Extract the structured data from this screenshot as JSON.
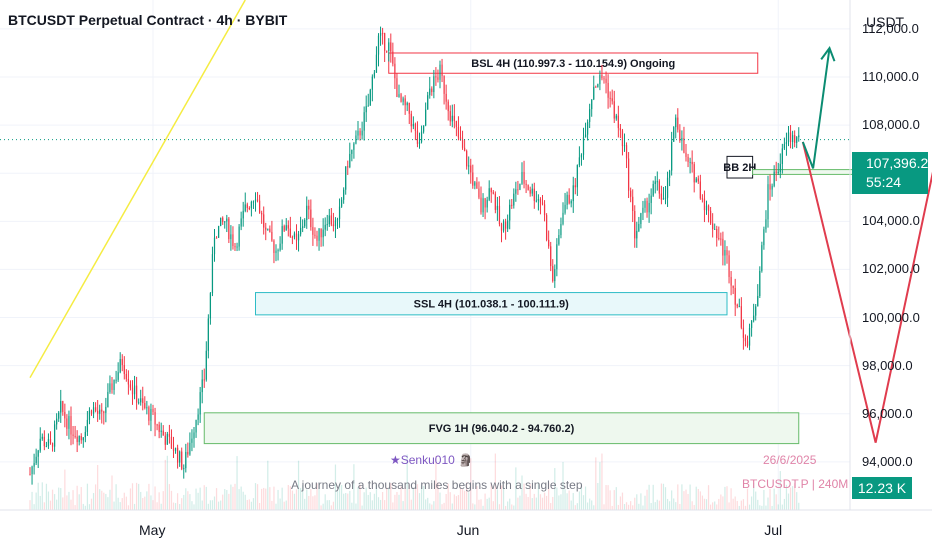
{
  "header": {
    "title": "BTCUSDT Perpetual Contract · 4h · BYBIT",
    "unit": "USDT"
  },
  "current": {
    "price": "107,396.2",
    "countdown": "55:24",
    "volume": "12.23 K",
    "value": 107396.2
  },
  "watermark": {
    "author": "★Senku010 🗿",
    "quote": "A journey of a thousand miles begins with a single step",
    "date": "26/6/2025",
    "symbol": "BTCUSDT.P | 240M"
  },
  "colors": {
    "up": "#089981",
    "down": "#f23645",
    "projection_down": "#e03c4e",
    "projection_up": "#0b8c72",
    "trendline": "#f5ec42"
  },
  "chart_data": {
    "type": "candlestick",
    "ylim": [
      92000,
      113200
    ],
    "y_ticks": [
      {
        "v": 112000,
        "label": "112,000.0"
      },
      {
        "v": 110000,
        "label": "110,000.0"
      },
      {
        "v": 108000,
        "label": "108,000.0"
      },
      {
        "v": 106000,
        "label": "106,000.0"
      },
      {
        "v": 104000,
        "label": "104,000.0"
      },
      {
        "v": 102000,
        "label": "102,000.0"
      },
      {
        "v": 100000,
        "label": "100,000.0"
      },
      {
        "v": 98000,
        "label": "98,000.0"
      },
      {
        "v": 96000,
        "label": "96,000.0"
      },
      {
        "v": 94000,
        "label": "94,000.0"
      }
    ],
    "x_ticks": [
      {
        "label": "May",
        "day": 0
      },
      {
        "label": "Jun",
        "day": 31
      },
      {
        "label": "Jul",
        "day": 61
      }
    ],
    "x_range_days": [
      -12,
      68
    ],
    "price_path": [
      [
        -12,
        93500
      ],
      [
        -11,
        95000
      ],
      [
        -10,
        94600
      ],
      [
        -9,
        96200
      ],
      [
        -8,
        95400
      ],
      [
        -7,
        95000
      ],
      [
        -6,
        96300
      ],
      [
        -5,
        95800
      ],
      [
        -4,
        97200
      ],
      [
        -3,
        98200
      ],
      [
        -2,
        97000
      ],
      [
        -1,
        96300
      ],
      [
        0,
        95800
      ],
      [
        1,
        95100
      ],
      [
        2,
        94600
      ],
      [
        3,
        93800
      ],
      [
        4,
        95500
      ],
      [
        5,
        97500
      ],
      [
        6,
        103500
      ],
      [
        7,
        104000
      ],
      [
        8,
        103000
      ],
      [
        9,
        104500
      ],
      [
        10,
        105200
      ],
      [
        11,
        103500
      ],
      [
        12,
        102800
      ],
      [
        13,
        104000
      ],
      [
        14,
        103000
      ],
      [
        15,
        104500
      ],
      [
        16,
        103200
      ],
      [
        17,
        104200
      ],
      [
        18,
        103800
      ],
      [
        19,
        106500
      ],
      [
        20,
        107500
      ],
      [
        21,
        108800
      ],
      [
        22,
        111600
      ],
      [
        23,
        111300
      ],
      [
        24,
        109000
      ],
      [
        25,
        108500
      ],
      [
        26,
        107000
      ],
      [
        27,
        109500
      ],
      [
        28,
        110200
      ],
      [
        29,
        108500
      ],
      [
        30,
        107200
      ],
      [
        31,
        106000
      ],
      [
        32,
        104500
      ],
      [
        33,
        105500
      ],
      [
        34,
        103500
      ],
      [
        35,
        104800
      ],
      [
        36,
        105800
      ],
      [
        37,
        105200
      ],
      [
        38,
        104800
      ],
      [
        39,
        101500
      ],
      [
        40,
        104600
      ],
      [
        41,
        105200
      ],
      [
        42,
        107500
      ],
      [
        43,
        109700
      ],
      [
        44,
        110000
      ],
      [
        45,
        108500
      ],
      [
        46,
        107000
      ],
      [
        47,
        103500
      ],
      [
        48,
        104500
      ],
      [
        49,
        105500
      ],
      [
        50,
        104800
      ],
      [
        51,
        108400
      ],
      [
        52,
        106500
      ],
      [
        53,
        105800
      ],
      [
        54,
        104500
      ],
      [
        55,
        103500
      ],
      [
        56,
        102400
      ],
      [
        57,
        100500
      ],
      [
        58,
        98800
      ],
      [
        59,
        101200
      ],
      [
        60,
        105200
      ],
      [
        61,
        106300
      ],
      [
        62,
        107500
      ],
      [
        63,
        107400
      ]
    ],
    "zones": [
      {
        "label": "BSL 4H (110.997.3 - 110.154.9) Ongoing",
        "type": "bsl",
        "from_day": 23,
        "to_day": 59,
        "top": 110997.3,
        "bottom": 110154.9,
        "stroke": "#f23645",
        "fill": "#ffffff"
      },
      {
        "label": "SSL 4H (101.038.1 - 100.111.9)",
        "type": "ssl",
        "from_day": 10,
        "to_day": 56,
        "top": 101038.1,
        "bottom": 100111.9,
        "stroke": "#2ebcc6",
        "fill": "#e8f8fa"
      },
      {
        "label": "FVG 1H (96.040.2 - 94.760.2)",
        "type": "fvg",
        "from_day": 5,
        "to_day": 63,
        "top": 96040.2,
        "bottom": 94760.2,
        "stroke": "#66bb6a",
        "fill": "#eef8ee"
      },
      {
        "label": "BB 2H",
        "type": "bb",
        "from_day": 56,
        "to_day": 58.5,
        "top": 106700,
        "bottom": 105800,
        "stroke": "#131722",
        "fill": "#ffffff"
      }
    ],
    "bb_line": {
      "from_day": 58.5,
      "to_day": 69,
      "top": 106150,
      "bottom": 105950
    },
    "projection_down": [
      [
        63.4,
        107300
      ],
      [
        70.5,
        94800
      ],
      [
        79,
        111900
      ]
    ],
    "projection_up": [
      [
        63.4,
        107300
      ],
      [
        64.4,
        106200
      ],
      [
        66,
        111200
      ]
    ],
    "trendline": [
      [
        -12,
        97500
      ],
      [
        9,
        113200
      ]
    ]
  }
}
